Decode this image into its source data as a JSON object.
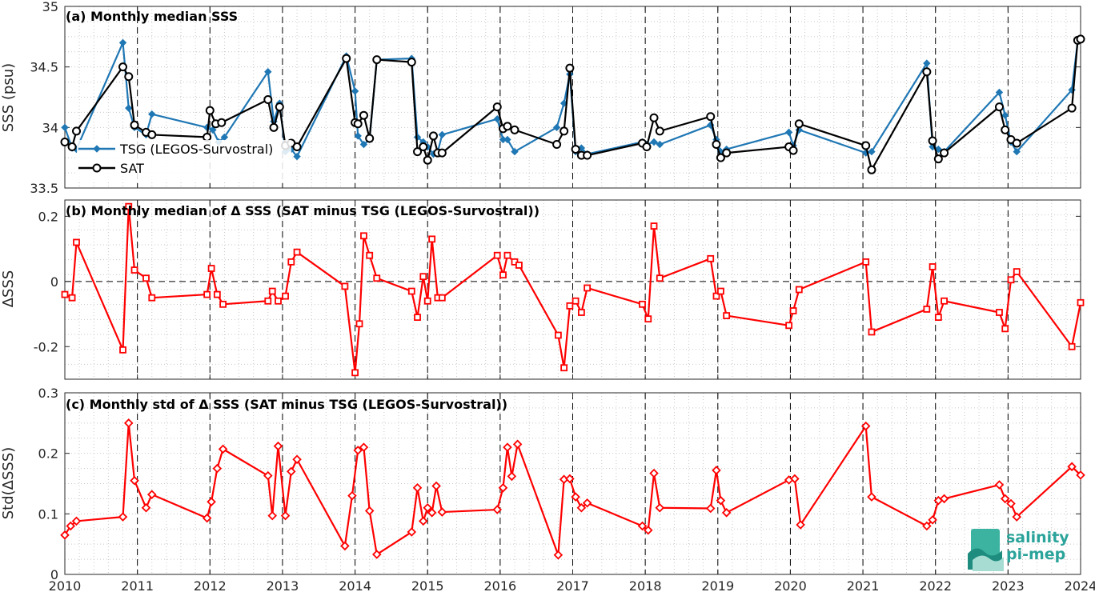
{
  "colors": {
    "tsg": "#1f77b4",
    "sat": "#000000",
    "delta": "#ff0000",
    "grid_major": "#000000",
    "grid_minor": "#c8c8c8"
  },
  "xaxis": {
    "range": [
      2010,
      2024
    ],
    "ticks": [
      "2010",
      "2011",
      "2012",
      "2013",
      "2014",
      "2015",
      "2016",
      "2017",
      "2018",
      "2019",
      "2020",
      "2021",
      "2022",
      "2023",
      "2024"
    ]
  },
  "logo": {
    "line1": "salinity",
    "line2": "pi-mep"
  },
  "chart_data": [
    {
      "type": "line",
      "title": "(a) Monthly median SSS",
      "ylabel": "SSS (psu)",
      "ylim": [
        33.5,
        35
      ],
      "yticks": [
        33.5,
        34,
        34.5,
        35
      ],
      "ytick_labels": [
        "33.5",
        "34",
        "34.5",
        "35"
      ],
      "legend": "top-left",
      "series": [
        {
          "name": "TSG (LEGOS-Survostral)",
          "marker": "diamond",
          "x": [
            2010.0,
            2010.1,
            2010.16,
            2010.8,
            2010.88,
            2010.96,
            2011.12,
            2011.2,
            2011.96,
            2012.04,
            2012.12,
            2012.2,
            2012.8,
            2012.88,
            2012.96,
            2013.04,
            2013.12,
            2013.2,
            2013.88,
            2014.0,
            2014.04,
            2014.12,
            2014.2,
            2014.3,
            2014.78,
            2014.86,
            2014.94,
            2015.0,
            2015.08,
            2015.14,
            2015.2,
            2015.96,
            2016.04,
            2016.1,
            2016.2,
            2016.78,
            2016.88,
            2016.96,
            2017.04,
            2017.12,
            2017.2,
            2017.96,
            2018.02,
            2018.12,
            2018.2,
            2018.9,
            2018.98,
            2019.04,
            2019.12,
            2019.98,
            2020.04,
            2020.12,
            2021.04,
            2021.12,
            2021.88,
            2021.96,
            2022.04,
            2022.12,
            2022.88,
            2022.96,
            2023.04,
            2023.12,
            2023.88,
            2023.96,
            2024.0
          ],
          "y": [
            34.0,
            33.83,
            33.82,
            34.7,
            34.16,
            34.0,
            33.94,
            34.11,
            34.0,
            33.98,
            33.88,
            33.92,
            34.46,
            34.05,
            34.2,
            33.8,
            33.82,
            33.76,
            34.59,
            34.3,
            33.93,
            33.86,
            33.9,
            34.56,
            34.57,
            33.92,
            33.88,
            33.84,
            33.78,
            33.8,
            33.94,
            34.07,
            33.9,
            33.9,
            33.8,
            34.0,
            34.2,
            34.44,
            33.8,
            33.83,
            33.78,
            33.88,
            33.86,
            33.88,
            33.86,
            34.02,
            33.9,
            33.8,
            33.82,
            33.96,
            33.85,
            33.98,
            33.79,
            33.8,
            34.53,
            33.84,
            33.82,
            33.8,
            34.29,
            34.1,
            33.88,
            33.8,
            34.31,
            34.71,
            34.73
          ]
        },
        {
          "name": "SAT",
          "marker": "circle",
          "x": [
            2010.0,
            2010.1,
            2010.16,
            2010.8,
            2010.88,
            2010.96,
            2011.12,
            2011.2,
            2011.96,
            2012.0,
            2012.08,
            2012.16,
            2012.8,
            2012.88,
            2012.96,
            2013.04,
            2013.12,
            2013.2,
            2013.88,
            2014.0,
            2014.04,
            2014.12,
            2014.2,
            2014.3,
            2014.78,
            2014.86,
            2014.94,
            2015.0,
            2015.08,
            2015.14,
            2015.2,
            2015.96,
            2016.04,
            2016.1,
            2016.2,
            2016.78,
            2016.88,
            2016.96,
            2017.04,
            2017.12,
            2017.2,
            2017.96,
            2018.02,
            2018.12,
            2018.2,
            2018.9,
            2018.98,
            2019.04,
            2019.12,
            2019.98,
            2020.04,
            2020.12,
            2021.04,
            2021.12,
            2021.88,
            2021.96,
            2022.04,
            2022.12,
            2022.88,
            2022.96,
            2023.04,
            2023.12,
            2023.88,
            2023.96,
            2024.0
          ],
          "y": [
            33.88,
            33.84,
            33.97,
            34.5,
            34.42,
            34.02,
            33.96,
            33.94,
            33.92,
            34.14,
            34.03,
            34.04,
            34.23,
            34.0,
            34.17,
            33.85,
            33.87,
            33.84,
            34.57,
            34.04,
            34.03,
            34.1,
            33.91,
            34.56,
            34.54,
            33.8,
            33.84,
            33.73,
            33.93,
            33.79,
            33.79,
            34.17,
            33.99,
            34.01,
            33.98,
            33.86,
            33.97,
            34.49,
            33.82,
            33.77,
            33.77,
            33.87,
            33.84,
            34.08,
            33.97,
            34.09,
            33.86,
            33.75,
            33.79,
            33.84,
            33.81,
            34.03,
            33.85,
            33.65,
            34.46,
            33.89,
            33.74,
            33.79,
            34.17,
            33.98,
            33.9,
            33.87,
            34.16,
            34.72,
            34.73
          ]
        }
      ]
    },
    {
      "type": "line",
      "title": "(b) Monthly median of Δ SSS (SAT minus TSG (LEGOS-Survostral))",
      "ylabel": "ΔSSS",
      "ylim": [
        -0.3,
        0.25
      ],
      "yticks": [
        -0.2,
        0,
        0.2
      ],
      "ytick_labels": [
        "-0.2",
        "0",
        "0.2"
      ],
      "zero_line": true,
      "series": [
        {
          "name": "",
          "marker": "square",
          "x": [
            2010.0,
            2010.1,
            2010.16,
            2010.8,
            2010.88,
            2010.96,
            2011.12,
            2011.2,
            2011.96,
            2012.02,
            2012.1,
            2012.18,
            2012.8,
            2012.86,
            2012.94,
            2013.04,
            2013.12,
            2013.2,
            2013.86,
            2014.0,
            2014.06,
            2014.12,
            2014.2,
            2014.3,
            2014.78,
            2014.86,
            2014.94,
            2015.0,
            2015.06,
            2015.14,
            2015.2,
            2015.96,
            2016.04,
            2016.1,
            2016.2,
            2016.26,
            2016.8,
            2016.88,
            2016.96,
            2017.04,
            2017.12,
            2017.2,
            2017.96,
            2018.04,
            2018.12,
            2018.2,
            2018.9,
            2018.98,
            2019.04,
            2019.12,
            2019.98,
            2020.04,
            2020.12,
            2021.04,
            2021.12,
            2021.88,
            2021.96,
            2022.04,
            2022.12,
            2022.88,
            2022.96,
            2023.04,
            2023.12,
            2023.88,
            2024.0
          ],
          "y": [
            -0.04,
            -0.05,
            0.12,
            -0.21,
            0.23,
            0.035,
            0.01,
            -0.05,
            -0.04,
            0.04,
            -0.04,
            -0.07,
            -0.06,
            -0.03,
            -0.06,
            -0.045,
            0.06,
            0.09,
            -0.015,
            -0.28,
            -0.13,
            0.14,
            0.08,
            0.01,
            -0.03,
            -0.11,
            0.015,
            -0.06,
            0.13,
            -0.05,
            -0.05,
            0.08,
            0.02,
            0.08,
            0.06,
            0.05,
            -0.165,
            -0.265,
            -0.075,
            -0.06,
            -0.095,
            -0.02,
            -0.07,
            -0.115,
            0.17,
            0.01,
            0.07,
            -0.045,
            -0.03,
            -0.105,
            -0.135,
            -0.09,
            -0.025,
            0.06,
            -0.155,
            -0.085,
            0.045,
            -0.11,
            -0.06,
            -0.095,
            -0.145,
            0.005,
            0.03,
            -0.2,
            -0.065
          ]
        }
      ]
    },
    {
      "type": "line",
      "title": "(c) Monthly std of Δ SSS (SAT minus TSG (LEGOS-Survostral))",
      "ylabel": "Std(ΔSSS)",
      "ylim": [
        0,
        0.3
      ],
      "yticks": [
        0,
        0.1,
        0.2,
        0.3
      ],
      "ytick_labels": [
        "0",
        "0.1",
        "0.2",
        "0.3"
      ],
      "series": [
        {
          "name": "",
          "marker": "diamond",
          "x": [
            2010.0,
            2010.08,
            2010.16,
            2010.8,
            2010.88,
            2010.96,
            2011.12,
            2011.2,
            2011.96,
            2012.02,
            2012.1,
            2012.18,
            2012.8,
            2012.86,
            2012.94,
            2013.04,
            2013.12,
            2013.2,
            2013.86,
            2013.96,
            2014.04,
            2014.12,
            2014.2,
            2014.3,
            2014.78,
            2014.86,
            2014.94,
            2015.0,
            2015.06,
            2015.12,
            2015.2,
            2015.96,
            2016.04,
            2016.1,
            2016.16,
            2016.24,
            2016.8,
            2016.88,
            2016.96,
            2017.04,
            2017.12,
            2017.2,
            2017.96,
            2018.04,
            2018.12,
            2018.2,
            2018.9,
            2018.98,
            2019.04,
            2019.12,
            2019.98,
            2020.06,
            2020.14,
            2021.04,
            2021.12,
            2021.88,
            2021.96,
            2022.04,
            2022.12,
            2022.88,
            2022.96,
            2023.04,
            2023.12,
            2023.88,
            2024.0
          ],
          "y": [
            0.065,
            0.08,
            0.088,
            0.095,
            0.25,
            0.155,
            0.11,
            0.132,
            0.093,
            0.12,
            0.175,
            0.207,
            0.163,
            0.097,
            0.212,
            0.097,
            0.17,
            0.19,
            0.047,
            0.13,
            0.205,
            0.21,
            0.105,
            0.033,
            0.07,
            0.143,
            0.088,
            0.11,
            0.102,
            0.146,
            0.103,
            0.107,
            0.143,
            0.21,
            0.162,
            0.215,
            0.032,
            0.157,
            0.158,
            0.128,
            0.11,
            0.118,
            0.08,
            0.073,
            0.167,
            0.11,
            0.109,
            0.172,
            0.122,
            0.102,
            0.156,
            0.158,
            0.082,
            0.245,
            0.128,
            0.08,
            0.09,
            0.122,
            0.125,
            0.148,
            0.125,
            0.117,
            0.095,
            0.178,
            0.164
          ]
        }
      ]
    }
  ]
}
